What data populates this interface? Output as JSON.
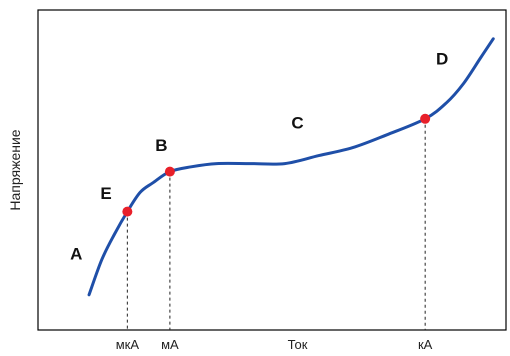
{
  "chart_data": {
    "type": "line",
    "title": "",
    "xlabel": "",
    "ylabel": "Напряжение",
    "x_tick_labels": [
      {
        "x": 1.05,
        "label": "мкА"
      },
      {
        "x": 1.55,
        "label": "мА"
      },
      {
        "x": 3.05,
        "label": "Ток"
      },
      {
        "x": 4.55,
        "label": "кА"
      }
    ],
    "xlim": [
      0,
      5.5
    ],
    "ylim": [
      0,
      1
    ],
    "grid": false,
    "series": [
      {
        "color": "#1f4fa8",
        "points": [
          {
            "x": 0.6,
            "y": 0.11
          },
          {
            "x": 0.75,
            "y": 0.22
          },
          {
            "x": 0.9,
            "y": 0.3
          },
          {
            "x": 1.05,
            "y": 0.37
          },
          {
            "x": 1.2,
            "y": 0.43
          },
          {
            "x": 1.35,
            "y": 0.46
          },
          {
            "x": 1.55,
            "y": 0.495
          },
          {
            "x": 1.8,
            "y": 0.51
          },
          {
            "x": 2.1,
            "y": 0.52
          },
          {
            "x": 2.5,
            "y": 0.52
          },
          {
            "x": 2.9,
            "y": 0.52
          },
          {
            "x": 3.3,
            "y": 0.545
          },
          {
            "x": 3.7,
            "y": 0.57
          },
          {
            "x": 4.1,
            "y": 0.61
          },
          {
            "x": 4.55,
            "y": 0.66
          },
          {
            "x": 4.8,
            "y": 0.71
          },
          {
            "x": 5.0,
            "y": 0.77
          },
          {
            "x": 5.2,
            "y": 0.85
          },
          {
            "x": 5.35,
            "y": 0.91
          }
        ]
      }
    ],
    "marked_points": [
      {
        "label": "E",
        "x": 1.05,
        "y": 0.37,
        "color": "#e8202a"
      },
      {
        "label": "B",
        "x": 1.55,
        "y": 0.495,
        "color": "#e8202a"
      },
      {
        "label": "D",
        "x": 4.55,
        "y": 0.66,
        "color": "#e8202a"
      }
    ],
    "annotations": [
      {
        "text": "A",
        "x": 0.45,
        "y": 0.22
      },
      {
        "text": "E",
        "x": 0.8,
        "y": 0.41
      },
      {
        "text": "B",
        "x": 1.45,
        "y": 0.56
      },
      {
        "text": "C",
        "x": 3.05,
        "y": 0.63
      },
      {
        "text": "D",
        "x": 4.75,
        "y": 0.83
      }
    ],
    "guide_lines": [
      1.05,
      1.55,
      4.55
    ]
  }
}
